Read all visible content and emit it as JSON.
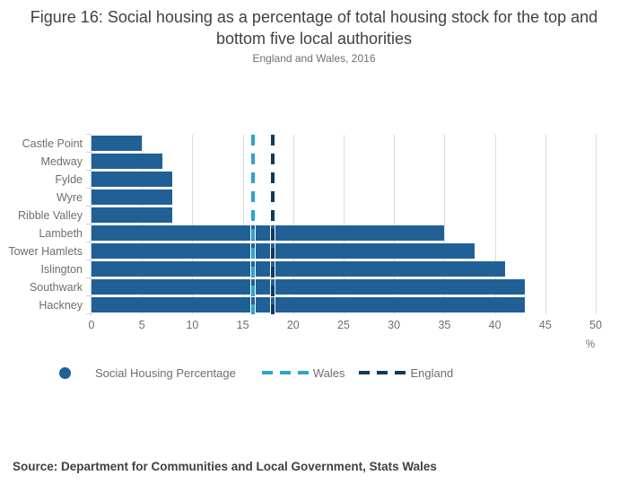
{
  "header": {
    "title": "Figure 16: Social housing as a percentage of total housing stock for the top and bottom five local authorities",
    "subtitle": "England and Wales, 2016"
  },
  "chart_data": {
    "type": "bar",
    "orientation": "horizontal",
    "title": "Figure 16: Social housing as a percentage of total housing stock for the top and bottom five local authorities",
    "subtitle": "England and Wales, 2016",
    "categories": [
      "Castle Point",
      "Medway",
      "Fylde",
      "Wyre",
      "Ribble Valley",
      "Lambeth",
      "Tower Hamlets",
      "Islington",
      "Southwark",
      "Hackney"
    ],
    "values": [
      5,
      7,
      8,
      8,
      8,
      35,
      38,
      41,
      43,
      43
    ],
    "series_name": "Social Housing Percentage",
    "xlabel": "%",
    "ylabel": "",
    "xlim": [
      0,
      50
    ],
    "xticks": [
      0,
      5,
      10,
      15,
      20,
      25,
      30,
      35,
      40,
      45,
      50
    ],
    "grid": true,
    "bar_color": "#206095",
    "reference_lines": [
      {
        "label": "Wales",
        "value": 16,
        "color": "#2ba3d3",
        "style": "dashed"
      },
      {
        "label": "England",
        "value": 18,
        "color": "#0d3a5e",
        "style": "dashed"
      }
    ],
    "legend_position": "bottom"
  },
  "legend": {
    "items": [
      {
        "label": "Social Housing Percentage",
        "marker": "circle",
        "color": "#206095"
      },
      {
        "label": "Wales",
        "marker": "dashed-line",
        "color": "#2ba3d3"
      },
      {
        "label": "England",
        "marker": "dashed-line",
        "color": "#0d3a5e"
      }
    ]
  },
  "footer": {
    "source": "Source: Department for Communities and Local Government, Stats Wales"
  }
}
